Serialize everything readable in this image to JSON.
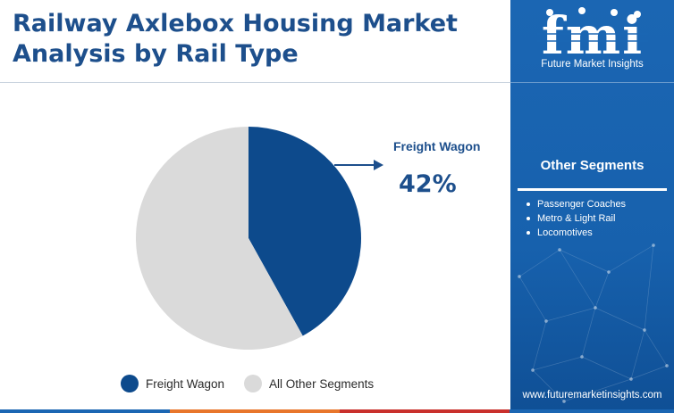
{
  "header": {
    "title_line1": "Railway Axlebox Housing Market",
    "title_line2": "Analysis by Rail Type"
  },
  "brand": {
    "logo_text": "fmi",
    "name": "Future Market Insights",
    "website": "www.futuremarketinsights.com"
  },
  "sidebar": {
    "heading": "Other Segments",
    "items": [
      "Passenger Coaches",
      "Metro & Light Rail",
      "Locomotives"
    ]
  },
  "callout": {
    "label": "Freight Wagon",
    "value": "42%"
  },
  "legend": [
    {
      "label": "Freight Wagon",
      "color": "#0d4a8c"
    },
    {
      "label": "All Other Segments",
      "color": "#dadada"
    }
  ],
  "colors": {
    "title": "#1d4f8c",
    "accent": "#0d4a8c",
    "other": "#dadada",
    "sidebar": "#1b66b3",
    "bottom_bar": [
      "#1b66b3",
      "#e8762b",
      "#c9302c",
      "#1b66b3"
    ]
  },
  "chart_data": {
    "type": "pie",
    "title": "Railway Axlebox Housing Market Analysis by Rail Type",
    "slices": [
      {
        "label": "Freight Wagon",
        "value": 42,
        "color": "#0d4a8c"
      },
      {
        "label": "All Other Segments",
        "value": 58,
        "color": "#dadada"
      }
    ],
    "start_angle_deg": 0,
    "direction": "clockwise",
    "legend_position": "bottom"
  }
}
